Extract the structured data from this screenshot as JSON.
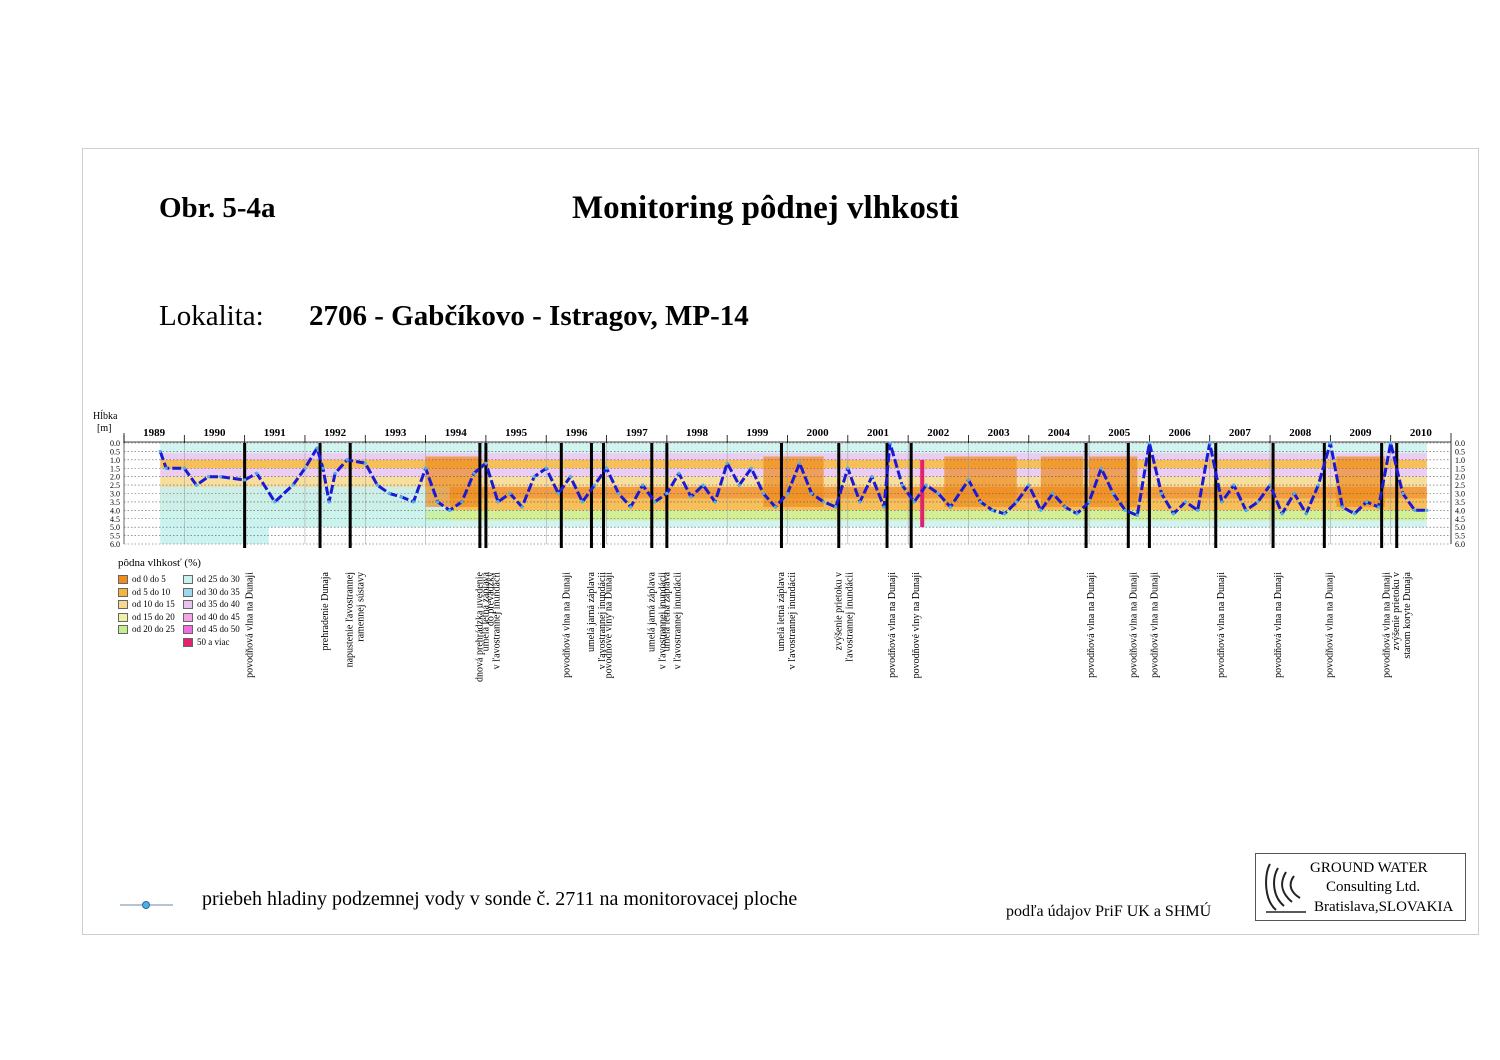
{
  "figure_label": "Obr. 5-4a",
  "title": "Monitoring pôdnej vlhkosti",
  "location_label": "Lokalita:",
  "location_value": "2706 - Gabčíkovo - Istragov, MP-14",
  "footer_legend_text": "priebeh hladiny podzemnej vody v sonde č. 2711 na monitorovacej ploche",
  "source_note": "podľa údajov PriF UK a SHMÚ",
  "logo": {
    "line1": "GROUND WATER",
    "line2": "Consulting Ltd.",
    "line3": "Bratislava,SLOVAKIA"
  },
  "colors": {
    "water_line": "#1a1ad6",
    "events": "#000000"
  },
  "chart_data": {
    "type": "heatmap",
    "ylabel": "Hĺbka",
    "yunit": "[m]",
    "ylim": [
      0.0,
      6.0
    ],
    "yticks": [
      "0.0",
      "0.5",
      "1.0",
      "1.5",
      "2.0",
      "2.5",
      "3.0",
      "3.5",
      "4.0",
      "4.5",
      "5.0",
      "5.5",
      "6.0"
    ],
    "xlim": [
      1989,
      2011
    ],
    "years": [
      "1989",
      "1990",
      "1991",
      "1992",
      "1993",
      "1994",
      "1995",
      "1996",
      "1997",
      "1998",
      "1999",
      "2000",
      "2001",
      "2002",
      "2003",
      "2004",
      "2005",
      "2006",
      "2007",
      "2008",
      "2009",
      "2010"
    ],
    "legend": {
      "title": "pôdna vlhkosť (%)",
      "classes": [
        {
          "label": "od 0 do 5",
          "color": "#f08c1e"
        },
        {
          "label": "od 5 do 10",
          "color": "#f5b43c"
        },
        {
          "label": "od 10 do 15",
          "color": "#f7d88c"
        },
        {
          "label": "od 15 do 20",
          "color": "#eef0a6"
        },
        {
          "label": "od 20 do 25",
          "color": "#c4ee8c"
        },
        {
          "label": "od 25 do 30",
          "color": "#c9f2ef"
        },
        {
          "label": "od 30 do 35",
          "color": "#9fd8ee"
        },
        {
          "label": "od 35 do 40",
          "color": "#e6c4ee"
        },
        {
          "label": "od 40 do 45",
          "color": "#f2a6e8"
        },
        {
          "label": "od 45 do 50",
          "color": "#ee6fe0"
        },
        {
          "label": "50 a viac",
          "color": "#e4206f"
        }
      ]
    },
    "series": [
      {
        "name": "priebeh hladiny podzemnej vody v sonde č. 2711 na monitorovacej ploche",
        "x": [
          1989.6,
          1989.7,
          1990.0,
          1990.2,
          1990.4,
          1990.6,
          1991.0,
          1991.2,
          1991.5,
          1991.8,
          1992.0,
          1992.2,
          1992.3,
          1992.4,
          1992.5,
          1992.7,
          1993.0,
          1993.2,
          1993.4,
          1993.6,
          1993.8,
          1994.0,
          1994.2,
          1994.4,
          1994.6,
          1994.8,
          1995.0,
          1995.2,
          1995.4,
          1995.6,
          1995.8,
          1996.0,
          1996.2,
          1996.4,
          1996.6,
          1996.8,
          1997.0,
          1997.2,
          1997.4,
          1997.6,
          1997.8,
          1998.0,
          1998.2,
          1998.4,
          1998.6,
          1998.8,
          1999.0,
          1999.2,
          1999.4,
          1999.6,
          1999.8,
          2000.0,
          2000.2,
          2000.4,
          2000.6,
          2000.8,
          2001.0,
          2001.2,
          2001.4,
          2001.6,
          2001.7,
          2001.9,
          2002.1,
          2002.3,
          2002.5,
          2002.7,
          2003.0,
          2003.2,
          2003.4,
          2003.6,
          2003.8,
          2004.0,
          2004.2,
          2004.4,
          2004.6,
          2004.8,
          2005.0,
          2005.2,
          2005.4,
          2005.6,
          2005.8,
          2006.0,
          2006.2,
          2006.4,
          2006.6,
          2006.8,
          2007.0,
          2007.2,
          2007.4,
          2007.6,
          2007.8,
          2008.0,
          2008.2,
          2008.4,
          2008.6,
          2008.8,
          2009.0,
          2009.2,
          2009.4,
          2009.6,
          2009.8,
          2010.0,
          2010.2,
          2010.4,
          2010.6
        ],
        "y": [
          0.5,
          1.5,
          1.5,
          2.5,
          2.0,
          2.0,
          2.2,
          1.8,
          3.5,
          2.5,
          1.5,
          0.3,
          1.5,
          3.5,
          1.8,
          1.0,
          1.2,
          2.5,
          3.0,
          3.2,
          3.5,
          1.5,
          3.5,
          4.0,
          3.5,
          1.8,
          1.2,
          3.5,
          3.0,
          3.8,
          2.0,
          1.5,
          3.0,
          2.0,
          3.5,
          2.5,
          1.5,
          3.0,
          3.8,
          2.5,
          3.5,
          3.0,
          1.8,
          3.2,
          2.5,
          3.5,
          1.2,
          2.5,
          1.5,
          3.0,
          3.8,
          3.0,
          1.2,
          3.0,
          3.5,
          3.8,
          1.5,
          3.5,
          2.0,
          3.8,
          0.0,
          2.5,
          3.5,
          2.5,
          3.0,
          3.8,
          2.2,
          3.5,
          4.0,
          4.2,
          3.5,
          2.5,
          4.0,
          3.0,
          3.8,
          4.2,
          3.5,
          1.5,
          3.0,
          4.0,
          4.3,
          0.0,
          3.0,
          4.2,
          3.5,
          4.0,
          0.0,
          3.5,
          2.5,
          4.0,
          3.5,
          2.5,
          4.2,
          3.0,
          4.2,
          2.5,
          0.0,
          3.8,
          4.2,
          3.5,
          3.8,
          0.0,
          3.0,
          4.0,
          4.0
        ]
      }
    ],
    "events": [
      {
        "x": 1991.0,
        "label": "povodňová vlna na Dunaji"
      },
      {
        "x": 1992.25,
        "label": "prehradenie Dunaja"
      },
      {
        "x": 1992.75,
        "label": "napustenie ľavostrannej ramennej sústavy"
      },
      {
        "x": 1994.9,
        "label": "dnová prehrádzka uvedenie do prevádzky"
      },
      {
        "x": 1995.0,
        "label": "umelá letná záplava v ľavostrannej inundácii"
      },
      {
        "x": 1996.25,
        "label": "povodňová vlna na Dunaji"
      },
      {
        "x": 1996.75,
        "label": "umelá jarná záplava v ľavostrannej inundácii"
      },
      {
        "x": 1996.95,
        "label": "povodňové vlny na Dunaji"
      },
      {
        "x": 1997.75,
        "label": "umelá jarná záplava v ľavostrannej inundácii"
      },
      {
        "x": 1998.0,
        "label": "umelá letná záplava v ľavostrannej inundácii"
      },
      {
        "x": 1999.9,
        "label": "umelá letná záplava v ľavostrannej inundácii"
      },
      {
        "x": 2000.85,
        "label": "zvýšenie prietoku v ľavostrannej inundácii"
      },
      {
        "x": 2001.65,
        "label": "povodňová vlna na Dunaji"
      },
      {
        "x": 2002.05,
        "label": "povodňové vlny na Dunaji"
      },
      {
        "x": 2004.95,
        "label": "povodňová vlna na Dunaji"
      },
      {
        "x": 2005.65,
        "label": "povodňová vlna na Dunaji"
      },
      {
        "x": 2006.0,
        "label": "povodňová vlna na Dunaji"
      },
      {
        "x": 2007.1,
        "label": "povodňová vlna na Dunaji"
      },
      {
        "x": 2008.05,
        "label": "povodňová vlna na Dunaji"
      },
      {
        "x": 2008.9,
        "label": "povodňová vlna na Dunaji"
      },
      {
        "x": 2009.85,
        "label": "povodňová vlna na Dunaji"
      },
      {
        "x": 2010.1,
        "label": "zvýšenie prietoku v starom koryte Dunaja"
      }
    ]
  }
}
